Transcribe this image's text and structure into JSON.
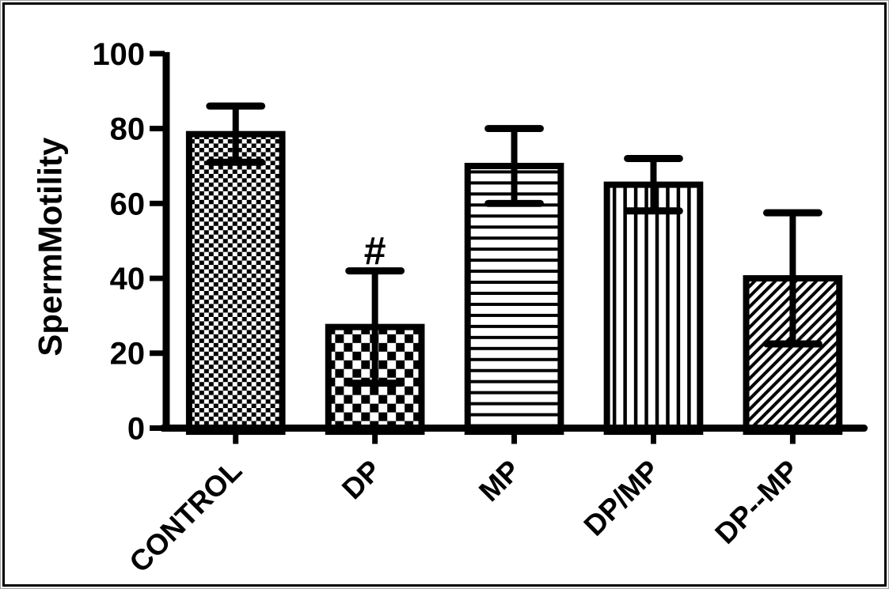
{
  "window": {
    "background": "#ffffff",
    "frame_color": "#000000",
    "ink_color": "#000000"
  },
  "chart_data": {
    "type": "bar",
    "title": "",
    "ylabel": "SpermMotility",
    "xlabel": "",
    "categories": [
      "CONTROL",
      "DP",
      "MP",
      "DP/MP",
      "DP--MP"
    ],
    "values": [
      78.5,
      27,
      70,
      65,
      40
    ],
    "errors_sd": [
      7.5,
      15,
      10,
      7,
      17.5
    ],
    "error_bar_style": "both-directions-with-caps",
    "bar_patterns": [
      "checker-fine",
      "checker-coarse",
      "horizontal-lines",
      "vertical-lines",
      "diagonal-lines"
    ],
    "bar_outline_color": "#000000",
    "bar_fill_background": "#ffffff",
    "annotations": [
      {
        "text": "#",
        "category": "DP",
        "position": "above-error-bar"
      }
    ],
    "y_ticks": [
      0,
      20,
      40,
      60,
      80,
      100
    ],
    "ylim": [
      0,
      100
    ],
    "grid": false,
    "legend": "none"
  }
}
